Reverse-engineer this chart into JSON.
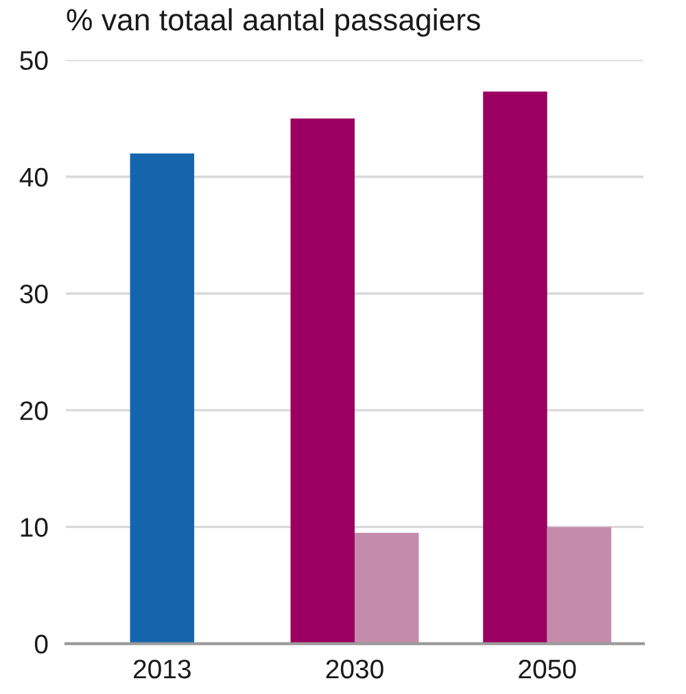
{
  "chart_data": {
    "type": "bar",
    "title": "% van totaal aantal passagiers",
    "categories": [
      "2013",
      "2030",
      "2050"
    ],
    "series": [
      {
        "colors": [
          "#1565ad",
          "#9b0061",
          "#9b0061"
        ],
        "values": [
          42,
          45,
          47.3
        ]
      },
      {
        "color": "#c58bac",
        "values": [
          null,
          9.5,
          10
        ]
      }
    ],
    "ylim": [
      0,
      50
    ],
    "yticks": [
      0,
      10,
      20,
      30,
      40,
      50
    ],
    "grid": "y"
  }
}
